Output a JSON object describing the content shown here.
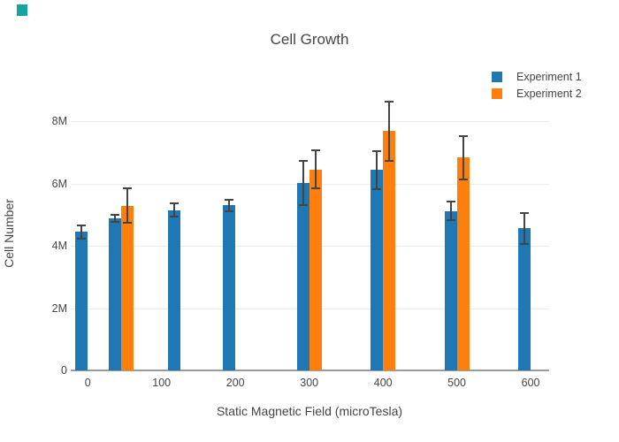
{
  "colors": {
    "series1": "#1f77b4",
    "series2": "#ff7f0e",
    "error_bar": "#444444",
    "gridline": "#ececec",
    "zeroline": "#9b9b9b",
    "text": "#444444",
    "corner_marker": "#14a5a0"
  },
  "chart_data": {
    "type": "bar",
    "title": "Cell Growth",
    "xlabel": "Static Magnetic Field (microTesla)",
    "ylabel": "Cell Number",
    "legend_position": "top-right",
    "grid": "horizontal gridlines on, white background",
    "x_range": [
      -23,
      625
    ],
    "y_range": [
      0,
      8900000
    ],
    "x_ticks": [
      0,
      100,
      200,
      300,
      400,
      500,
      600
    ],
    "y_ticks": [
      {
        "value": 0,
        "label": "0"
      },
      {
        "value": 2000000,
        "label": "2M"
      },
      {
        "value": 4000000,
        "label": "4M"
      },
      {
        "value": 6000000,
        "label": "6M"
      },
      {
        "value": 8000000,
        "label": "8M"
      }
    ],
    "series": [
      {
        "name": "Experiment 1",
        "color": "#1f77b4",
        "points": [
          {
            "x": 0,
            "y": 4450000,
            "err": 210000
          },
          {
            "x": 45,
            "y": 4890000,
            "err": 105000
          },
          {
            "x": 125,
            "y": 5150000,
            "err": 220000
          },
          {
            "x": 200,
            "y": 5300000,
            "err": 180000
          },
          {
            "x": 300,
            "y": 6020000,
            "err": 700000
          },
          {
            "x": 400,
            "y": 6430000,
            "err": 610000
          },
          {
            "x": 500,
            "y": 5120000,
            "err": 300000
          },
          {
            "x": 600,
            "y": 4560000,
            "err": 500000
          }
        ]
      },
      {
        "name": "Experiment 2",
        "color": "#ff7f0e",
        "points": [
          {
            "x": 45,
            "y": 5290000,
            "err": 550000
          },
          {
            "x": 300,
            "y": 6450000,
            "err": 610000
          },
          {
            "x": 400,
            "y": 7680000,
            "err": 940000
          },
          {
            "x": 500,
            "y": 6830000,
            "err": 700000
          }
        ]
      }
    ]
  }
}
